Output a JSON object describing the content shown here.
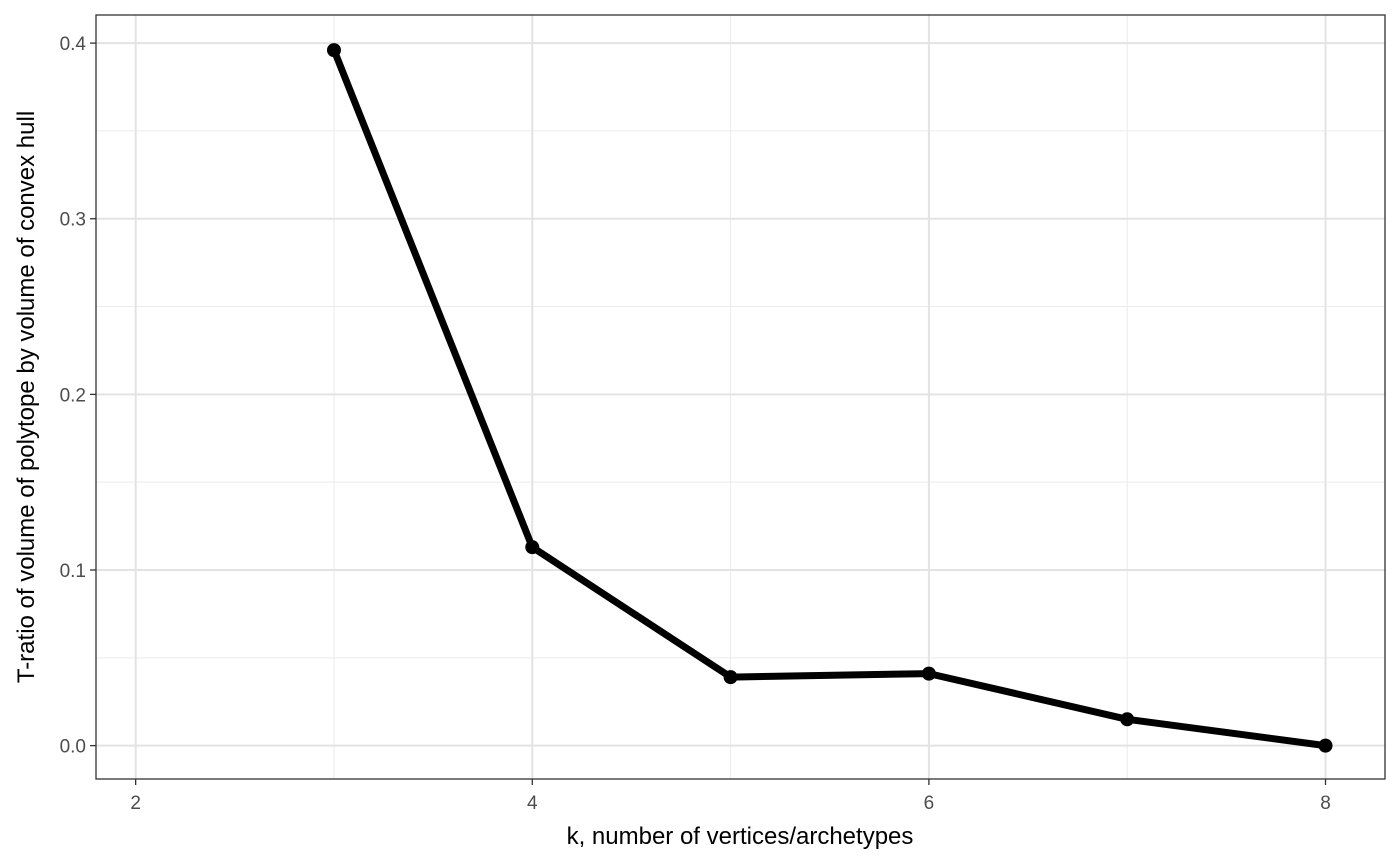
{
  "chart_data": {
    "type": "line",
    "title": "",
    "xlabel": "k, number of vertices/archetypes",
    "ylabel": "T-ratio of volume of polytope by volume of convex hull",
    "xlim": [
      1.8,
      8.3
    ],
    "ylim": [
      -0.019,
      0.416
    ],
    "x_ticks": [
      2,
      4,
      6,
      8
    ],
    "x_tick_labels": [
      "2",
      "4",
      "6",
      "8"
    ],
    "x_minor_ticks": [
      3,
      5,
      7
    ],
    "y_ticks": [
      0.0,
      0.1,
      0.2,
      0.3,
      0.4
    ],
    "y_tick_labels": [
      "0.0",
      "0.1",
      "0.2",
      "0.3",
      "0.4"
    ],
    "y_minor_ticks": [
      0.05,
      0.15,
      0.25,
      0.35
    ],
    "grid": true,
    "legend": "none",
    "series": [
      {
        "x": [
          3,
          4,
          5,
          6,
          7,
          8
        ],
        "y": [
          0.396,
          0.113,
          0.039,
          0.041,
          0.015,
          0.0
        ],
        "color": "#000000"
      }
    ]
  }
}
